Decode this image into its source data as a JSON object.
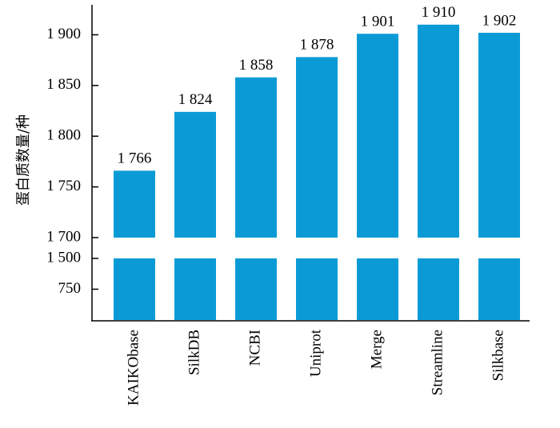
{
  "chart_data": {
    "type": "bar",
    "y_label": "蛋白质数量/种",
    "categories": [
      "KAIKObase",
      "SilkDB",
      "NCBI",
      "Uniprot",
      "Merge",
      "Streamline",
      "Silkbase"
    ],
    "values": [
      1766,
      1824,
      1858,
      1878,
      1901,
      1910,
      1902
    ],
    "value_labels": [
      "1 766",
      "1 824",
      "1 858",
      "1 878",
      "1 901",
      "1 910",
      "1 902"
    ],
    "color": "#0a9bd6",
    "y_segments": [
      {
        "ylim": [
          0,
          1500
        ],
        "yticks": [
          750,
          {
            "value": 1500,
            "label": "1 500"
          }
        ]
      },
      {
        "ylim": [
          1700,
          1928
        ],
        "yticks": [
          {
            "value": 1700,
            "label": "1 700"
          },
          {
            "value": 1750,
            "label": "1 750"
          },
          {
            "value": 1800,
            "label": "1 800"
          },
          {
            "value": 1850,
            "label": "1 850"
          },
          {
            "value": 1900,
            "label": "1 900"
          }
        ]
      }
    ]
  }
}
